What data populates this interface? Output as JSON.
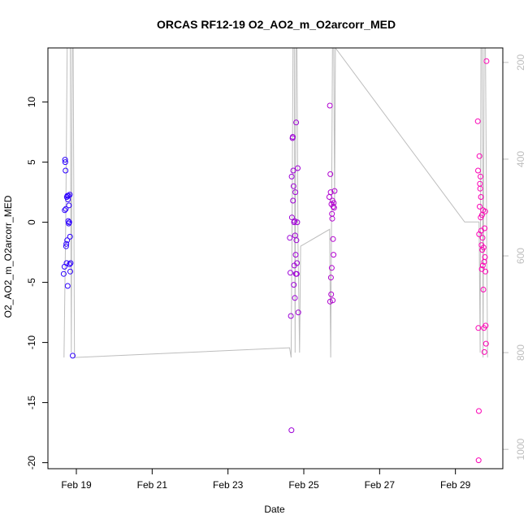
{
  "chart_data": {
    "type": "scatter",
    "title": "ORCAS RF12-19 O2_AO2_m_O2arcorr_MED",
    "xlabel": "Date",
    "ylabel": "O2_AO2_m_O2arcorr_MED",
    "xlim": [
      "2016-02-18T06:00",
      "2016-03-01T06:00"
    ],
    "ylim": [
      -20.5,
      14.5
    ],
    "y2lim": [
      1040,
      170
    ],
    "grid": false,
    "x_ticks": [
      {
        "value": "2016-02-19",
        "label": "Feb 19"
      },
      {
        "value": "2016-02-21",
        "label": "Feb 21"
      },
      {
        "value": "2016-02-23",
        "label": "Feb 23"
      },
      {
        "value": "2016-02-25",
        "label": "Feb 25"
      },
      {
        "value": "2016-02-27",
        "label": "Feb 27"
      },
      {
        "value": "2016-02-29",
        "label": "Feb 29"
      }
    ],
    "y_ticks": [
      10,
      5,
      0,
      -5,
      -10,
      -15,
      -20
    ],
    "y2_ticks": [
      200,
      400,
      600,
      800,
      1000
    ],
    "colors": {
      "series_start": "#2a00ff",
      "series_end": "#ff00b4",
      "trace": "#bdbdbd"
    },
    "pressure_trace": [
      [
        "2016-02-18T16:10",
        810
      ],
      [
        "2016-02-18T17:20",
        520
      ],
      [
        "2016-02-18T18:10",
        170
      ],
      [
        "2016-02-18T19:00",
        170
      ],
      [
        "2016-02-18T20:10",
        170
      ],
      [
        "2016-02-18T20:50",
        800
      ],
      [
        "2016-02-18T21:20",
        170
      ],
      [
        "2016-02-18T22:00",
        170
      ],
      [
        "2016-02-18T22:50",
        810
      ],
      [
        "2016-02-24T15:00",
        790
      ],
      [
        "2016-02-24T16:00",
        810
      ],
      [
        "2016-02-24T16:40",
        500
      ],
      [
        "2016-02-24T17:10",
        170
      ],
      [
        "2016-02-24T18:00",
        170
      ],
      [
        "2016-02-24T18:30",
        800
      ],
      [
        "2016-02-24T19:00",
        170
      ],
      [
        "2016-02-24T19:40",
        170
      ],
      [
        "2016-02-24T20:20",
        580
      ],
      [
        "2016-02-24T21:20",
        800
      ],
      [
        "2016-02-24T22:00",
        580
      ],
      [
        "2016-02-25T16:20",
        545
      ],
      [
        "2016-02-25T17:00",
        810
      ],
      [
        "2016-02-25T17:40",
        450
      ],
      [
        "2016-02-25T18:10",
        170
      ],
      [
        "2016-02-25T19:00",
        170
      ],
      [
        "2016-02-25T19:30",
        500
      ],
      [
        "2016-02-25T20:00",
        170
      ],
      [
        "2016-02-29T05:50",
        530
      ],
      [
        "2016-02-29T15:00",
        530
      ],
      [
        "2016-02-29T15:40",
        800
      ],
      [
        "2016-02-29T16:10",
        170
      ],
      [
        "2016-02-29T17:00",
        170
      ],
      [
        "2016-02-29T17:30",
        810
      ],
      [
        "2016-02-29T18:10",
        170
      ],
      [
        "2016-02-29T19:00",
        170
      ],
      [
        "2016-02-29T20:20",
        810
      ]
    ],
    "points": [
      [
        "2016-02-18T16:00",
        -4.3
      ],
      [
        "2016-02-18T16:30",
        -3.7
      ],
      [
        "2016-02-18T16:40",
        1.0
      ],
      [
        "2016-02-18T16:50",
        5.2
      ],
      [
        "2016-02-18T17:00",
        5.0
      ],
      [
        "2016-02-18T17:10",
        4.3
      ],
      [
        "2016-02-18T17:20",
        1.1
      ],
      [
        "2016-02-18T17:30",
        -2.0
      ],
      [
        "2016-02-18T17:40",
        -1.8
      ],
      [
        "2016-02-18T17:50",
        -3.4
      ],
      [
        "2016-02-18T18:00",
        2.1
      ],
      [
        "2016-02-18T18:10",
        -1.5
      ],
      [
        "2016-02-18T18:20",
        2.2
      ],
      [
        "2016-02-18T18:30",
        -5.3
      ],
      [
        "2016-02-18T18:40",
        1.9
      ],
      [
        "2016-02-18T18:50",
        0.1
      ],
      [
        "2016-02-18T19:00",
        2.2
      ],
      [
        "2016-02-18T19:10",
        -0.1
      ],
      [
        "2016-02-18T19:20",
        1.4
      ],
      [
        "2016-02-18T19:30",
        0.0
      ],
      [
        "2016-02-18T19:40",
        -3.5
      ],
      [
        "2016-02-18T19:50",
        2.3
      ],
      [
        "2016-02-18T20:00",
        -1.2
      ],
      [
        "2016-02-18T20:10",
        -4.1
      ],
      [
        "2016-02-18T20:20",
        -3.4
      ],
      [
        "2016-02-18T21:40",
        -11.1
      ],
      [
        "2016-02-24T15:10",
        -1.3
      ],
      [
        "2016-02-24T15:30",
        -4.2
      ],
      [
        "2016-02-24T15:50",
        -7.8
      ],
      [
        "2016-02-24T16:10",
        -17.3
      ],
      [
        "2016-02-24T16:20",
        3.8
      ],
      [
        "2016-02-24T16:30",
        0.4
      ],
      [
        "2016-02-24T16:50",
        7.0
      ],
      [
        "2016-02-24T17:00",
        7.1
      ],
      [
        "2016-02-24T17:10",
        1.8
      ],
      [
        "2016-02-24T17:20",
        4.3
      ],
      [
        "2016-02-24T17:30",
        3.0
      ],
      [
        "2016-02-24T17:40",
        -5.2
      ],
      [
        "2016-02-24T17:50",
        0.0
      ],
      [
        "2016-02-24T18:00",
        -3.6
      ],
      [
        "2016-02-24T18:10",
        0.1
      ],
      [
        "2016-02-24T18:20",
        -6.3
      ],
      [
        "2016-02-24T18:30",
        -1.1
      ],
      [
        "2016-02-24T18:40",
        2.5
      ],
      [
        "2016-02-24T18:50",
        -2.7
      ],
      [
        "2016-02-24T19:00",
        -4.3
      ],
      [
        "2016-02-24T19:10",
        8.3
      ],
      [
        "2016-02-24T19:20",
        -1.5
      ],
      [
        "2016-02-24T19:30",
        -4.3
      ],
      [
        "2016-02-24T19:40",
        -3.4
      ],
      [
        "2016-02-24T19:50",
        0.0
      ],
      [
        "2016-02-24T20:10",
        4.5
      ],
      [
        "2016-02-24T20:30",
        -7.5
      ],
      [
        "2016-02-25T16:10",
        2.1
      ],
      [
        "2016-02-25T16:30",
        9.7
      ],
      [
        "2016-02-25T16:40",
        -6.6
      ],
      [
        "2016-02-25T16:50",
        4.0
      ],
      [
        "2016-02-25T17:00",
        2.5
      ],
      [
        "2016-02-25T17:10",
        -4.6
      ],
      [
        "2016-02-25T17:20",
        -6.0
      ],
      [
        "2016-02-25T17:30",
        1.5
      ],
      [
        "2016-02-25T17:40",
        -3.8
      ],
      [
        "2016-02-25T17:50",
        0.7
      ],
      [
        "2016-02-25T18:00",
        0.3
      ],
      [
        "2016-02-25T18:10",
        1.8
      ],
      [
        "2016-02-25T18:20",
        -6.5
      ],
      [
        "2016-02-25T18:30",
        -1.4
      ],
      [
        "2016-02-25T18:40",
        1.3
      ],
      [
        "2016-02-25T18:50",
        -2.7
      ],
      [
        "2016-02-25T19:00",
        1.6
      ],
      [
        "2016-02-25T19:10",
        1.2
      ],
      [
        "2016-02-25T19:30",
        2.6
      ],
      [
        "2016-02-29T14:10",
        8.4
      ],
      [
        "2016-02-29T14:20",
        4.3
      ],
      [
        "2016-02-29T14:30",
        -8.8
      ],
      [
        "2016-02-29T14:40",
        -19.8
      ],
      [
        "2016-02-29T14:50",
        -15.7
      ],
      [
        "2016-02-29T15:00",
        -1.0
      ],
      [
        "2016-02-29T15:10",
        5.5
      ],
      [
        "2016-02-29T15:20",
        1.3
      ],
      [
        "2016-02-29T15:30",
        3.2
      ],
      [
        "2016-02-29T15:40",
        2.8
      ],
      [
        "2016-02-29T15:50",
        3.8
      ],
      [
        "2016-02-29T16:00",
        0.4
      ],
      [
        "2016-02-29T16:10",
        2.1
      ],
      [
        "2016-02-29T16:20",
        -0.7
      ],
      [
        "2016-02-29T16:30",
        -1.9
      ],
      [
        "2016-02-29T16:40",
        -3.9
      ],
      [
        "2016-02-29T16:50",
        0.6
      ],
      [
        "2016-02-29T17:00",
        -2.3
      ],
      [
        "2016-02-29T17:10",
        -1.3
      ],
      [
        "2016-02-29T17:20",
        -3.6
      ],
      [
        "2016-02-29T17:30",
        1.0
      ],
      [
        "2016-02-29T17:40",
        -5.6
      ],
      [
        "2016-02-29T17:50",
        -2.1
      ],
      [
        "2016-02-29T18:00",
        -8.8
      ],
      [
        "2016-02-29T18:10",
        -3.3
      ],
      [
        "2016-02-29T18:20",
        -10.8
      ],
      [
        "2016-02-29T18:30",
        -0.5
      ],
      [
        "2016-02-29T18:40",
        -2.9
      ],
      [
        "2016-02-29T18:50",
        0.9
      ],
      [
        "2016-02-29T19:00",
        -4.1
      ],
      [
        "2016-02-29T19:10",
        -8.6
      ],
      [
        "2016-02-29T19:20",
        -10.1
      ],
      [
        "2016-02-29T19:40",
        13.4
      ]
    ]
  }
}
